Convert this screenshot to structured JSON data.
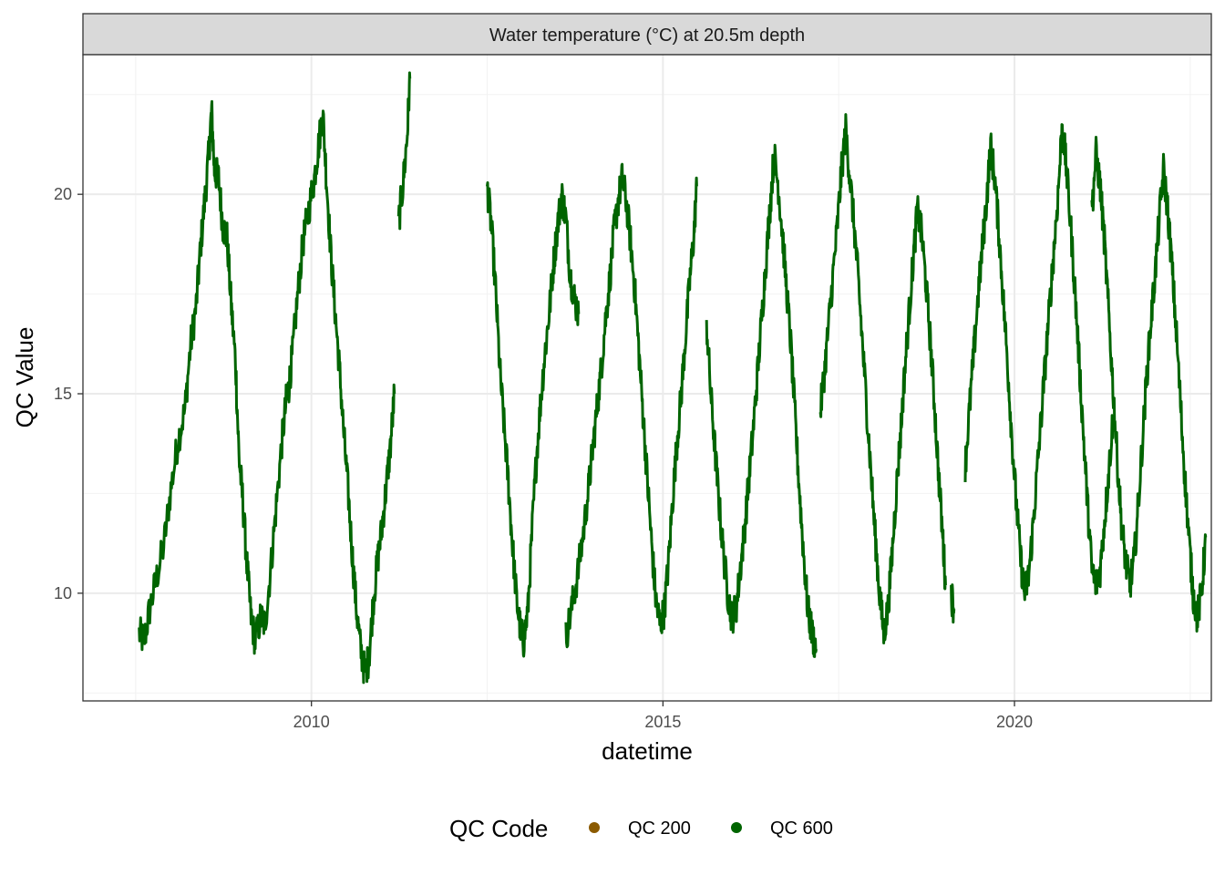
{
  "chart_data": {
    "type": "line",
    "title": "Water temperature (°C) at 20.5m depth",
    "xlabel": "datetime",
    "ylabel": "QC Value",
    "xlim": [
      2006.75,
      2022.8
    ],
    "ylim": [
      7.3,
      23.5
    ],
    "x_ticks": [
      2010,
      2015,
      2020
    ],
    "x_tick_labels": [
      "2010",
      "2015",
      "2020"
    ],
    "y_ticks": [
      10,
      15,
      20
    ],
    "y_tick_labels": [
      "10",
      "15",
      "20"
    ],
    "grid": true,
    "legend": {
      "title": "QC Code",
      "position": "bottom",
      "entries": [
        {
          "label": "QC 200",
          "color": "#8B5A00"
        },
        {
          "label": "QC 600",
          "color": "#006400"
        }
      ]
    },
    "series": [
      {
        "name": "QC 600",
        "color": "#006400",
        "segments": [
          [
            [
              2007.55,
              9.0
            ],
            [
              2007.62,
              8.8
            ],
            [
              2007.7,
              9.6
            ],
            [
              2007.8,
              10.4
            ],
            [
              2007.9,
              11.2
            ],
            [
              2008.0,
              12.6
            ],
            [
              2008.1,
              13.8
            ],
            [
              2008.2,
              14.6
            ],
            [
              2008.28,
              16.2
            ],
            [
              2008.36,
              17.2
            ],
            [
              2008.42,
              18.6
            ],
            [
              2008.48,
              19.8
            ],
            [
              2008.54,
              21.0
            ],
            [
              2008.58,
              22.1
            ],
            [
              2008.62,
              20.6
            ],
            [
              2008.68,
              20.4
            ],
            [
              2008.74,
              19.2
            ],
            [
              2008.8,
              18.9
            ],
            [
              2008.86,
              17.2
            ],
            [
              2008.92,
              15.8
            ],
            [
              2008.97,
              13.4
            ],
            [
              2009.02,
              12.4
            ],
            [
              2009.08,
              10.8
            ],
            [
              2009.14,
              9.4
            ],
            [
              2009.2,
              8.8
            ],
            [
              2009.28,
              9.4
            ],
            [
              2009.34,
              9.2
            ],
            [
              2009.42,
              10.6
            ],
            [
              2009.5,
              12.2
            ],
            [
              2009.58,
              13.8
            ],
            [
              2009.64,
              14.8
            ],
            [
              2009.68,
              15.2
            ],
            [
              2009.73,
              16.0
            ],
            [
              2009.8,
              17.4
            ],
            [
              2009.88,
              18.8
            ],
            [
              2009.96,
              19.6
            ],
            [
              2010.04,
              20.4
            ],
            [
              2010.1,
              21.2
            ],
            [
              2010.16,
              22.1
            ],
            [
              2010.22,
              20.2
            ],
            [
              2010.28,
              18.4
            ],
            [
              2010.34,
              17.0
            ],
            [
              2010.4,
              15.6
            ],
            [
              2010.46,
              14.0
            ],
            [
              2010.52,
              12.6
            ],
            [
              2010.58,
              11.0
            ],
            [
              2010.64,
              9.6
            ],
            [
              2010.7,
              8.6
            ],
            [
              2010.76,
              8.0
            ],
            [
              2010.82,
              8.4
            ],
            [
              2010.88,
              9.8
            ],
            [
              2010.94,
              10.8
            ],
            [
              2011.0,
              11.6
            ],
            [
              2011.06,
              12.6
            ],
            [
              2011.12,
              13.6
            ],
            [
              2011.18,
              15.0
            ]
          ],
          [
            [
              2011.24,
              19.3
            ],
            [
              2011.3,
              20.2
            ],
            [
              2011.36,
              21.4
            ],
            [
              2011.4,
              22.9
            ]
          ],
          [
            [
              2012.5,
              20.2
            ],
            [
              2012.56,
              19.2
            ],
            [
              2012.62,
              17.6
            ],
            [
              2012.68,
              15.6
            ],
            [
              2012.74,
              14.2
            ],
            [
              2012.8,
              12.8
            ],
            [
              2012.86,
              11.2
            ],
            [
              2012.92,
              9.8
            ],
            [
              2012.98,
              9.0
            ],
            [
              2013.02,
              8.8
            ],
            [
              2013.08,
              9.6
            ],
            [
              2013.14,
              11.6
            ],
            [
              2013.2,
              13.4
            ],
            [
              2013.26,
              14.8
            ],
            [
              2013.32,
              16.0
            ],
            [
              2013.38,
              17.0
            ],
            [
              2013.44,
              18.2
            ],
            [
              2013.5,
              19.2
            ],
            [
              2013.56,
              20.0
            ],
            [
              2013.62,
              19.4
            ],
            [
              2013.68,
              18.0
            ],
            [
              2013.74,
              17.4
            ],
            [
              2013.8,
              17.0
            ]
          ],
          [
            [
              2013.62,
              8.9
            ],
            [
              2013.7,
              9.6
            ],
            [
              2013.78,
              10.4
            ],
            [
              2013.86,
              11.4
            ],
            [
              2013.94,
              12.6
            ],
            [
              2014.0,
              13.6
            ],
            [
              2014.06,
              14.6
            ],
            [
              2014.12,
              15.6
            ],
            [
              2014.18,
              16.8
            ],
            [
              2014.24,
              17.8
            ],
            [
              2014.3,
              19.0
            ],
            [
              2014.36,
              19.8
            ],
            [
              2014.42,
              20.4
            ],
            [
              2014.48,
              19.8
            ],
            [
              2014.54,
              18.8
            ],
            [
              2014.6,
              17.6
            ],
            [
              2014.66,
              16.0
            ],
            [
              2014.72,
              14.4
            ],
            [
              2014.78,
              12.8
            ],
            [
              2014.84,
              11.2
            ],
            [
              2014.9,
              9.8
            ],
            [
              2014.96,
              9.2
            ],
            [
              2015.02,
              9.6
            ],
            [
              2015.08,
              10.8
            ],
            [
              2015.14,
              12.4
            ],
            [
              2015.2,
              13.8
            ],
            [
              2015.26,
              15.0
            ],
            [
              2015.32,
              16.4
            ],
            [
              2015.38,
              17.8
            ],
            [
              2015.44,
              19.0
            ],
            [
              2015.48,
              20.2
            ]
          ],
          [
            [
              2015.62,
              16.8
            ],
            [
              2015.68,
              15.0
            ],
            [
              2015.74,
              13.6
            ],
            [
              2015.8,
              12.2
            ],
            [
              2015.86,
              11.0
            ],
            [
              2015.92,
              10.0
            ],
            [
              2015.98,
              9.4
            ],
            [
              2016.04,
              9.6
            ],
            [
              2016.1,
              10.6
            ],
            [
              2016.16,
              11.6
            ],
            [
              2016.22,
              12.8
            ],
            [
              2016.28,
              14.0
            ],
            [
              2016.34,
              15.4
            ],
            [
              2016.4,
              16.8
            ],
            [
              2016.46,
              18.2
            ],
            [
              2016.52,
              19.6
            ],
            [
              2016.58,
              21.0
            ],
            [
              2016.64,
              20.2
            ],
            [
              2016.7,
              19.0
            ],
            [
              2016.76,
              17.6
            ],
            [
              2016.82,
              16.2
            ],
            [
              2016.88,
              14.4
            ],
            [
              2016.94,
              12.6
            ],
            [
              2017.0,
              11.0
            ],
            [
              2017.06,
              9.6
            ],
            [
              2017.12,
              9.0
            ],
            [
              2017.18,
              8.6
            ]
          ],
          [
            [
              2017.24,
              14.6
            ],
            [
              2017.3,
              15.6
            ],
            [
              2017.36,
              16.8
            ],
            [
              2017.42,
              18.0
            ],
            [
              2017.48,
              19.2
            ],
            [
              2017.54,
              20.6
            ],
            [
              2017.6,
              21.6
            ],
            [
              2017.66,
              20.4
            ],
            [
              2017.72,
              19.2
            ],
            [
              2017.78,
              17.8
            ],
            [
              2017.84,
              16.2
            ],
            [
              2017.9,
              14.6
            ],
            [
              2017.96,
              13.0
            ],
            [
              2018.02,
              11.4
            ],
            [
              2018.08,
              10.0
            ],
            [
              2018.14,
              9.0
            ],
            [
              2018.2,
              9.6
            ],
            [
              2018.26,
              11.0
            ],
            [
              2018.32,
              12.6
            ],
            [
              2018.38,
              14.0
            ],
            [
              2018.44,
              15.6
            ],
            [
              2018.5,
              17.0
            ],
            [
              2018.56,
              18.4
            ],
            [
              2018.62,
              19.6
            ],
            [
              2018.68,
              19.0
            ],
            [
              2018.74,
              17.8
            ],
            [
              2018.8,
              16.4
            ],
            [
              2018.86,
              14.8
            ],
            [
              2018.92,
              13.0
            ],
            [
              2018.98,
              11.4
            ],
            [
              2019.02,
              10.2
            ]
          ],
          [
            [
              2019.1,
              10.0
            ],
            [
              2019.14,
              9.6
            ]
          ],
          [
            [
              2019.3,
              13.2
            ],
            [
              2019.36,
              14.6
            ],
            [
              2019.42,
              16.0
            ],
            [
              2019.48,
              17.4
            ],
            [
              2019.54,
              18.6
            ],
            [
              2019.6,
              19.8
            ],
            [
              2019.66,
              21.2
            ],
            [
              2019.72,
              20.4
            ],
            [
              2019.78,
              19.0
            ],
            [
              2019.84,
              17.4
            ],
            [
              2019.9,
              15.8
            ],
            [
              2019.96,
              14.0
            ],
            [
              2020.02,
              12.4
            ],
            [
              2020.08,
              11.0
            ],
            [
              2020.14,
              10.0
            ],
            [
              2020.2,
              10.4
            ],
            [
              2020.26,
              11.6
            ],
            [
              2020.32,
              13.0
            ],
            [
              2020.38,
              14.4
            ],
            [
              2020.44,
              15.8
            ],
            [
              2020.5,
              17.2
            ],
            [
              2020.56,
              18.6
            ],
            [
              2020.62,
              20.0
            ],
            [
              2020.68,
              21.8
            ],
            [
              2020.74,
              20.6
            ],
            [
              2020.8,
              19.2
            ],
            [
              2020.86,
              17.6
            ],
            [
              2020.92,
              15.8
            ],
            [
              2020.98,
              14.0
            ],
            [
              2021.04,
              12.2
            ],
            [
              2021.1,
              10.6
            ],
            [
              2021.16,
              10.2
            ],
            [
              2021.22,
              10.6
            ],
            [
              2021.28,
              11.8
            ],
            [
              2021.34,
              13.0
            ],
            [
              2021.4,
              14.4
            ]
          ],
          [
            [
              2021.1,
              19.6
            ],
            [
              2021.16,
              21.0
            ],
            [
              2021.22,
              20.2
            ],
            [
              2021.28,
              18.8
            ],
            [
              2021.34,
              17.0
            ],
            [
              2021.4,
              15.2
            ],
            [
              2021.46,
              13.4
            ],
            [
              2021.52,
              11.8
            ],
            [
              2021.58,
              10.8
            ],
            [
              2021.64,
              10.2
            ],
            [
              2021.7,
              10.8
            ],
            [
              2021.76,
              12.2
            ],
            [
              2021.82,
              13.8
            ],
            [
              2021.88,
              15.4
            ],
            [
              2021.94,
              16.8
            ],
            [
              2022.0,
              18.0
            ],
            [
              2022.06,
              19.4
            ],
            [
              2022.12,
              20.6
            ],
            [
              2022.18,
              19.6
            ],
            [
              2022.24,
              18.2
            ],
            [
              2022.3,
              16.6
            ],
            [
              2022.36,
              14.8
            ],
            [
              2022.42,
              13.0
            ],
            [
              2022.48,
              11.4
            ],
            [
              2022.54,
              10.0
            ],
            [
              2022.6,
              9.4
            ],
            [
              2022.66,
              10.0
            ],
            [
              2022.72,
              11.4
            ]
          ]
        ]
      }
    ]
  }
}
